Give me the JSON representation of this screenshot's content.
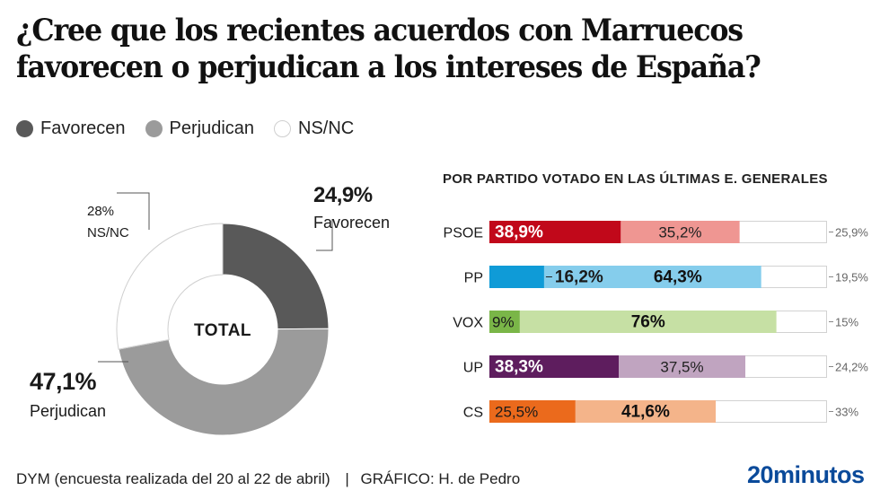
{
  "title": {
    "line1": "¿Cree que los recientes acuerdos con Marruecos",
    "line2": "favorecen o perjudican a los intereses de España?"
  },
  "legend": [
    {
      "label": "Favorecen",
      "color": "#595959"
    },
    {
      "label": "Perjudican",
      "color": "#9b9b9b"
    },
    {
      "label": "NS/NC",
      "color": "#ffffff"
    }
  ],
  "chart_data": [
    {
      "type": "pie",
      "subtype": "donut",
      "center_label": "TOTAL",
      "slices": [
        {
          "label": "Favorecen",
          "value": 24.9,
          "display": "24,9%",
          "color": "#595959"
        },
        {
          "label": "Perjudican",
          "value": 47.1,
          "display": "47,1%",
          "color": "#9b9b9b"
        },
        {
          "label": "NS/NC",
          "value": 28,
          "display": "28%",
          "color": "#ffffff"
        }
      ]
    },
    {
      "type": "bar",
      "orientation": "horizontal",
      "stacked": true,
      "title": "POR PARTIDO VOTADO EN LAS ÚLTIMAS E. GENERALES",
      "categories": [
        "PSOE",
        "PP",
        "VOX",
        "UP",
        "CS"
      ],
      "series": [
        {
          "name": "Favorecen",
          "values": [
            38.9,
            16.2,
            9,
            38.3,
            25.5
          ],
          "display": [
            "38,9%",
            "16,2%",
            "9%",
            "38,3%",
            "25,5%"
          ]
        },
        {
          "name": "Perjudican",
          "values": [
            35.2,
            64.3,
            76,
            37.5,
            41.6
          ],
          "display": [
            "35,2%",
            "64,3%",
            "76%",
            "37,5%",
            "41,6%"
          ]
        },
        {
          "name": "NS/NC",
          "values": [
            25.9,
            19.5,
            15,
            24.2,
            33
          ],
          "display": [
            "25,9%",
            "19,5%",
            "15%",
            "24,2%",
            "33%"
          ]
        }
      ],
      "colors": [
        {
          "party": "PSOE",
          "fav": "#c1081a",
          "per": "#ef9692",
          "fav_text": "#ffffff",
          "per_text": "#222222"
        },
        {
          "party": "PP",
          "fav": "#0f9bd7",
          "per": "#85cdec",
          "fav_text": "#ffffff",
          "per_text": "#111111"
        },
        {
          "party": "VOX",
          "fav": "#7ab648",
          "per": "#c6e0a4",
          "fav_text": "#1a1a1a",
          "per_text": "#111111"
        },
        {
          "party": "UP",
          "fav": "#5e1d5e",
          "per": "#c0a4c0",
          "fav_text": "#ffffff",
          "per_text": "#222222"
        },
        {
          "party": "CS",
          "fav": "#eb6a1c",
          "per": "#f4b48a",
          "fav_text": "#1a1a1a",
          "per_text": "#111111"
        }
      ],
      "xlim": [
        0,
        100
      ]
    }
  ],
  "footer": {
    "source": "DYM (encuesta realizada del 20 al 22 de abril)",
    "separator": "|",
    "credit": "GRÁFICO: H. de Pedro"
  },
  "logo": "20minutos"
}
